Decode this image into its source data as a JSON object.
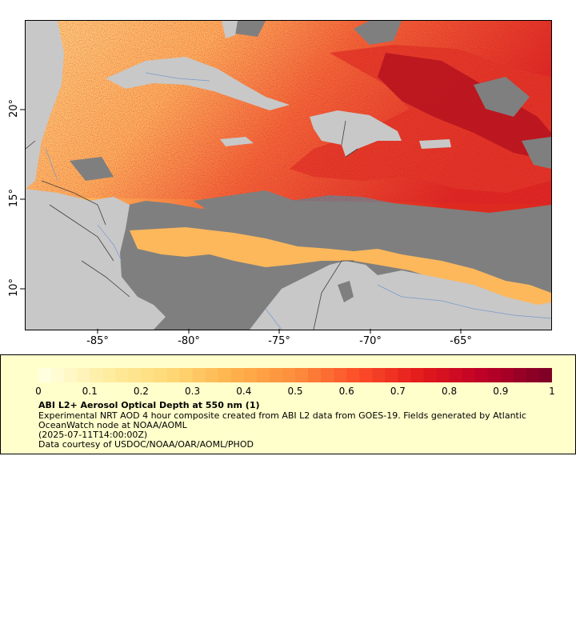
{
  "map": {
    "x_tick_labels": [
      "-85°",
      "-80°",
      "-75°",
      "-70°",
      "-65°"
    ],
    "y_tick_labels": [
      "20°",
      "15°",
      "10°"
    ],
    "colors": {
      "land": "#c8c8c8",
      "cloud_nodata": "#7f7f7f",
      "low_aod": "#fed27a",
      "mid_aod": "#fc8c3c",
      "high_aod": "#e31a1c",
      "very_high_aod": "#800026",
      "borders": "#404040",
      "rivers": "#7799cc"
    }
  },
  "legend": {
    "colorbar_ticks": [
      "0",
      "0.1",
      "0.2",
      "0.3",
      "0.4",
      "0.5",
      "0.6",
      "0.7",
      "0.8",
      "0.9",
      "1"
    ],
    "title": "ABI L2+ Aerosol Optical Depth at 550 nm (1)",
    "line1": "Experimental NRT AOD 4 hour composite created from ABI L2 data from GOES-19. Fields generated by Atlantic OceanWatch node at NOAA/AOML",
    "line2": "(2025-07-11T14:00:00Z)",
    "line3": "Data courtesy of USDOC/NOAA/OAR/AOML/PHOD"
  }
}
